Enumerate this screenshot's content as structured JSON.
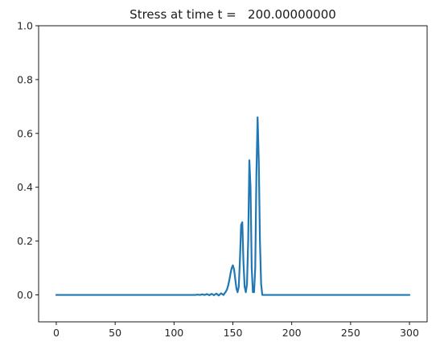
{
  "chart_data": {
    "type": "line",
    "title": "Stress at time t =   200.00000000",
    "xlabel": "",
    "ylabel": "",
    "xlim": [
      -15,
      315
    ],
    "ylim": [
      -0.1,
      1.0
    ],
    "xticks": [
      0,
      50,
      100,
      150,
      200,
      250,
      300
    ],
    "yticks": [
      0.0,
      0.2,
      0.4,
      0.6,
      0.8,
      1.0
    ],
    "xtick_labels": [
      "0",
      "50",
      "100",
      "150",
      "200",
      "250",
      "300"
    ],
    "ytick_labels": [
      "0.0",
      "0.2",
      "0.4",
      "0.6",
      "0.8",
      "1.0"
    ],
    "grid": false,
    "series": [
      {
        "color": "#1f77b4",
        "x": [
          0,
          110,
          118,
          120,
          122,
          124,
          126,
          128,
          130,
          132,
          134,
          136,
          138,
          140,
          142,
          144,
          145,
          146,
          147,
          148,
          149,
          150,
          151,
          152,
          153,
          154,
          155,
          156,
          157,
          158,
          159,
          160,
          161,
          162,
          163,
          164,
          165,
          166,
          167,
          168,
          169,
          170,
          171,
          172,
          173,
          174,
          175,
          200,
          250,
          300
        ],
        "y": [
          0,
          0,
          0,
          0.001,
          0,
          0.002,
          0,
          0.003,
          -0.001,
          0.004,
          -0.001,
          0.005,
          -0.002,
          0.006,
          0,
          0.012,
          0.02,
          0.035,
          0.055,
          0.08,
          0.1,
          0.11,
          0.095,
          0.06,
          0.025,
          0.01,
          0.03,
          0.13,
          0.26,
          0.27,
          0.12,
          0.03,
          0.01,
          0.04,
          0.2,
          0.5,
          0.4,
          0.1,
          0.01,
          0.01,
          0.1,
          0.45,
          0.66,
          0.5,
          0.2,
          0.04,
          0,
          0,
          0,
          0
        ]
      }
    ]
  }
}
